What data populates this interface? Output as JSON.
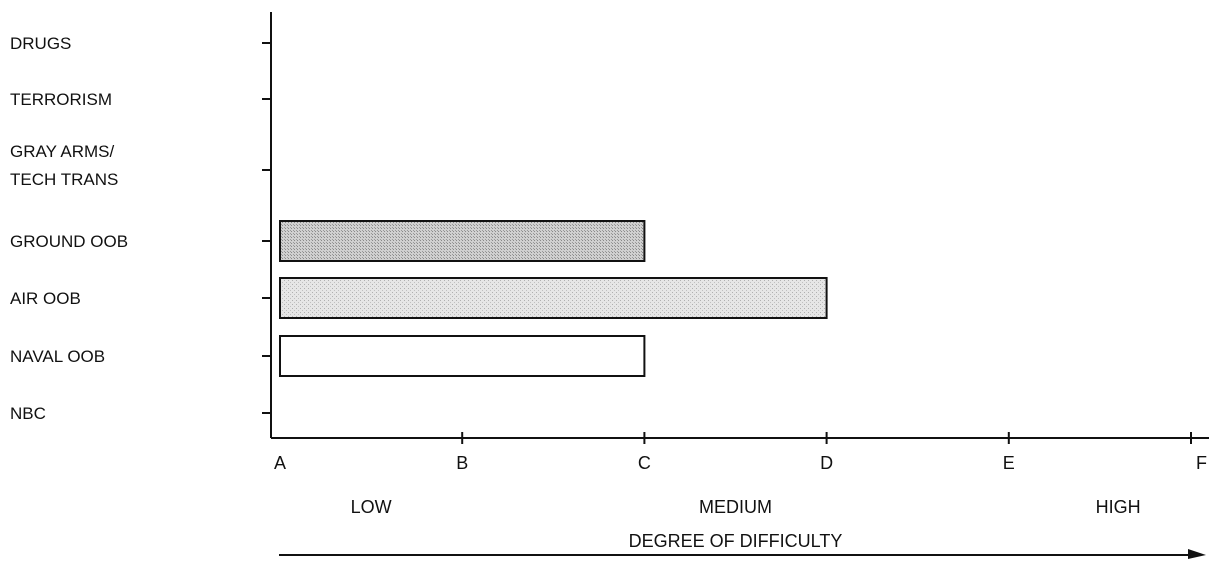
{
  "chart_data": {
    "type": "bar",
    "orientation": "horizontal",
    "categories": [
      "DRUGS",
      "TERRORISM",
      [
        "GRAY ARMS/",
        "TECH TRANS"
      ],
      "GROUND OOB",
      "AIR OOB",
      "NAVAL OOB",
      "NBC"
    ],
    "values": [
      null,
      null,
      null,
      2.0,
      3.0,
      2.0,
      null
    ],
    "bar_fills": [
      "none",
      "none",
      "none",
      "dark-stipple",
      "light-stipple",
      "white",
      "none"
    ],
    "x_tick_labels": [
      "A",
      "B",
      "C",
      "D",
      "E",
      "F"
    ],
    "xlim": [
      0,
      5
    ],
    "level_labels": [
      {
        "text": "LOW",
        "x": 0.5
      },
      {
        "text": "MEDIUM",
        "x": 2.5
      },
      {
        "text": "HIGH",
        "x": 4.6
      }
    ],
    "xlabel": "DEGREE OF DIFFICULTY",
    "title": "",
    "ylabel": "",
    "grid": false,
    "colors": {
      "axis": "#111111",
      "dark_stipple": "#c4c4c4",
      "light_stipple": "#e1e1e1",
      "white_bar": "#ffffff"
    }
  }
}
